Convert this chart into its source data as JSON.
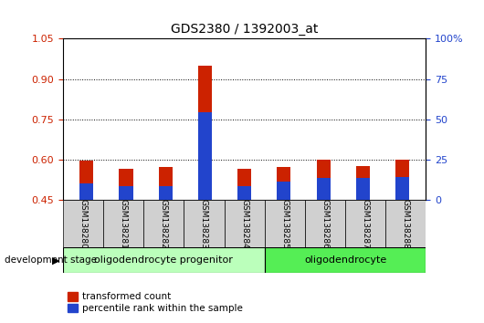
{
  "title": "GDS2380 / 1392003_at",
  "samples": [
    "GSM138280",
    "GSM138281",
    "GSM138282",
    "GSM138283",
    "GSM138284",
    "GSM138285",
    "GSM138286",
    "GSM138287",
    "GSM138288"
  ],
  "transformed_count": [
    0.597,
    0.568,
    0.573,
    0.95,
    0.567,
    0.572,
    0.6,
    0.577,
    0.6
  ],
  "percentile_top": [
    0.513,
    0.503,
    0.504,
    0.778,
    0.501,
    0.521,
    0.533,
    0.532,
    0.537
  ],
  "ylim_left": [
    0.45,
    1.05
  ],
  "yticks_left": [
    0.45,
    0.6,
    0.75,
    0.9,
    1.05
  ],
  "yticks_right_vals": [
    0,
    25,
    50,
    75,
    100
  ],
  "yticks_right_labels": [
    "0",
    "25",
    "50",
    "75",
    "100%"
  ],
  "bar_color_red": "#cc2200",
  "bar_color_blue": "#2244cc",
  "group1_label": "oligodendrocyte progenitor",
  "group1_count": 5,
  "group2_label": "oligodendrocyte",
  "group2_count": 4,
  "group_bg_light": "#bbffbb",
  "group_bg_dark": "#55ee55",
  "stage_label": "development stage",
  "legend_red": "transformed count",
  "legend_blue": "percentile rank within the sample",
  "bar_width": 0.35
}
